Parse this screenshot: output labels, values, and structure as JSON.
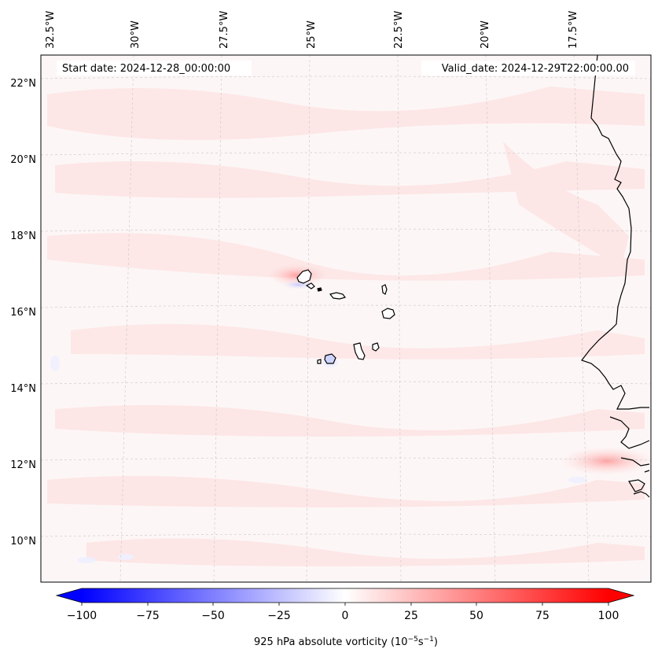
{
  "header": {
    "start_date": "Start date: 2024-12-28_00:00:00",
    "valid_date": "Valid_date: 2024-12-29T22:00:00.00"
  },
  "lon_labels": [
    "32.5°W",
    "30°W",
    "27.5°W",
    "25°W",
    "22.5°W",
    "20°W",
    "17.5°W"
  ],
  "lat_labels": [
    "22°N",
    "20°N",
    "18°N",
    "16°N",
    "14°N",
    "12°N",
    "10°N"
  ],
  "colorbar": {
    "ticks": [
      "−100",
      "−75",
      "−50",
      "−25",
      "0",
      "25",
      "50",
      "75",
      "100"
    ],
    "title": "925 hPa absolute vorticity (10",
    "title_sup1": "−5",
    "title_mid": "s",
    "title_sup2": "−1",
    "title_end": ")",
    "vmin": -100,
    "vmax": 100,
    "low_color": "#0000ff",
    "mid_color": "#ffffff",
    "high_color": "#ff0000"
  },
  "colors": {
    "field_base": "#fdf5f5",
    "coast": "#000000",
    "grid": "#bbbbbb"
  }
}
